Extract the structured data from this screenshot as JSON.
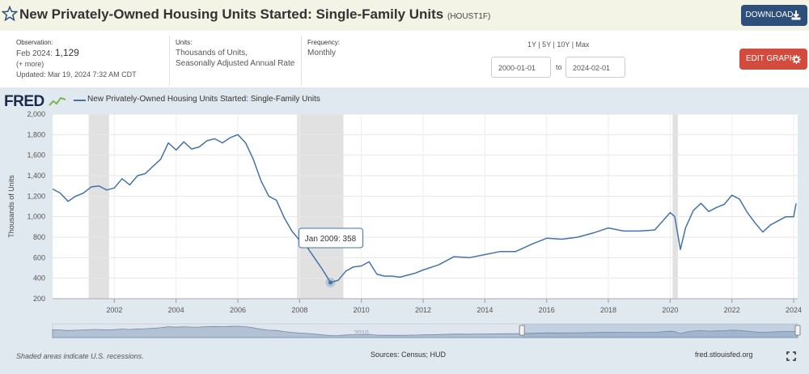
{
  "header": {
    "title": "New Privately-Owned Housing Units Started: Single-Family Units",
    "series_id": "(HOUST1F)",
    "download_label": "DOWNLOAD"
  },
  "meta": {
    "observation_label": "Observation:",
    "observation_period": "Feb 2024:",
    "observation_value": "1,129",
    "more_label": "(+ more)",
    "updated": "Updated: Mar 19, 2024 7:32 AM CDT",
    "units_label": "Units:",
    "units_line1": "Thousands of Units,",
    "units_line2": "Seasonally Adjusted Annual Rate",
    "frequency_label": "Frequency:",
    "frequency_value": "Monthly"
  },
  "controls": {
    "range_options": "1Y | 5Y | 10Y | Max",
    "start_date": "2000-01-01",
    "to_label": "to",
    "end_date": "2024-02-01",
    "edit_label": "EDIT GRAPH"
  },
  "chart_data": {
    "type": "line",
    "title": "New Privately-Owned Housing Units Started: Single-Family Units",
    "logo": "FRED",
    "ylabel": "Thousands of Units",
    "xlabel": "",
    "ylim": [
      200,
      2000
    ],
    "xlim": [
      2000.0,
      2024.13
    ],
    "yticks": [
      200,
      400,
      600,
      800,
      "1,000",
      "1,200",
      "1,400",
      "1,600",
      "1,800",
      "2,000"
    ],
    "xticks": [
      "2002",
      "2004",
      "2006",
      "2008",
      "2010",
      "2012",
      "2014",
      "2016",
      "2018",
      "2020",
      "2022",
      "2024"
    ],
    "recessions": [
      [
        2001.17,
        2001.83
      ],
      [
        2007.92,
        2009.42
      ],
      [
        2020.08,
        2020.25
      ]
    ],
    "series": [
      {
        "name": "New Privately-Owned Housing Units Started: Single-Family Units",
        "color": "#4572a7",
        "x": [
          2000.0,
          2000.25,
          2000.5,
          2000.75,
          2001.0,
          2001.25,
          2001.5,
          2001.75,
          2002.0,
          2002.25,
          2002.5,
          2002.75,
          2003.0,
          2003.25,
          2003.5,
          2003.75,
          2004.0,
          2004.25,
          2004.5,
          2004.75,
          2005.0,
          2005.25,
          2005.5,
          2005.75,
          2006.0,
          2006.25,
          2006.5,
          2006.75,
          2007.0,
          2007.25,
          2007.5,
          2007.75,
          2008.0,
          2008.25,
          2008.5,
          2008.75,
          2009.0,
          2009.25,
          2009.5,
          2009.75,
          2010.0,
          2010.25,
          2010.5,
          2010.75,
          2011.0,
          2011.25,
          2011.5,
          2011.75,
          2012.0,
          2012.5,
          2013.0,
          2013.5,
          2014.0,
          2014.5,
          2015.0,
          2015.5,
          2016.0,
          2016.5,
          2017.0,
          2017.5,
          2018.0,
          2018.5,
          2019.0,
          2019.5,
          2020.0,
          2020.15,
          2020.33,
          2020.5,
          2020.75,
          2021.0,
          2021.25,
          2021.5,
          2021.75,
          2022.0,
          2022.25,
          2022.5,
          2022.75,
          2023.0,
          2023.25,
          2023.5,
          2023.75,
          2024.0,
          2024.08
        ],
        "values": [
          1270,
          1230,
          1150,
          1200,
          1230,
          1290,
          1300,
          1260,
          1280,
          1370,
          1310,
          1400,
          1420,
          1490,
          1560,
          1720,
          1650,
          1730,
          1660,
          1680,
          1740,
          1760,
          1720,
          1770,
          1800,
          1720,
          1560,
          1350,
          1200,
          1160,
          990,
          860,
          770,
          700,
          590,
          480,
          358,
          380,
          470,
          510,
          520,
          560,
          440,
          420,
          420,
          410,
          430,
          450,
          480,
          530,
          610,
          600,
          630,
          660,
          660,
          730,
          790,
          780,
          800,
          840,
          890,
          860,
          860,
          870,
          1040,
          1000,
          680,
          890,
          1060,
          1130,
          1050,
          1090,
          1120,
          1210,
          1170,
          1040,
          940,
          850,
          920,
          960,
          1000,
          1000,
          1129
        ]
      }
    ],
    "annotation": {
      "label": "Jan 2009:",
      "value": "358",
      "x": 2009.0,
      "y": 358
    },
    "sources_text": "Sources: Census; HUD",
    "shaded_note": "Shaded areas indicate U.S. recessions.",
    "site": "fred.stlouisfed.org",
    "navigator_labels": [
      "2010"
    ]
  }
}
